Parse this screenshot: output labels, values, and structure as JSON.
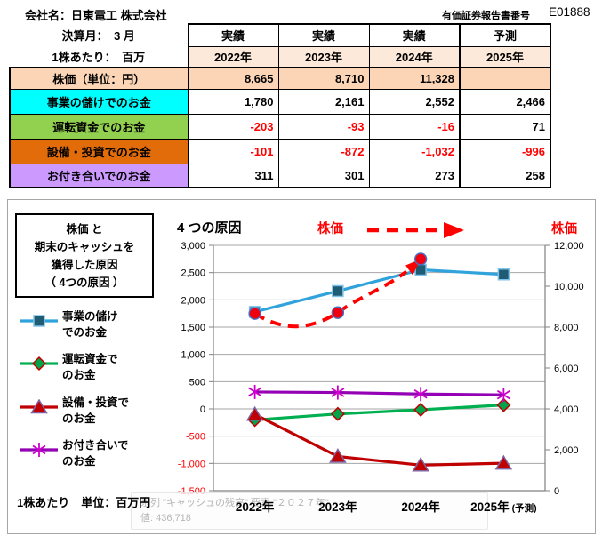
{
  "header": {
    "company_label": "会社名：日東電工 株式会社",
    "report_label": "有価証券報告書番号",
    "report_number": "E01888",
    "fiscal_month_label": "決算月：　3 月",
    "per_share_label": "1株あたり：　百万"
  },
  "table": {
    "col_headers": [
      "実績",
      "実績",
      "実績",
      "予測"
    ],
    "years": [
      "2022年",
      "2023年",
      "2024年",
      "2025年"
    ],
    "rows": [
      {
        "label": "株価（単位：円）",
        "bg": "#FBD5B5",
        "values": [
          "8,665",
          "8,710",
          "11,328",
          ""
        ]
      },
      {
        "label": "事業の儲けでのお金",
        "bg": "#00FFFF",
        "values": [
          "1,780",
          "2,161",
          "2,552",
          "2,466"
        ]
      },
      {
        "label": "運転資金でのお金",
        "bg": "#92D050",
        "values": [
          "-203",
          "-93",
          "-16",
          "71"
        ]
      },
      {
        "label": "設備・投資でのお金",
        "bg": "#E26B0A",
        "values": [
          "-101",
          "-872",
          "-1,032",
          "-996"
        ]
      },
      {
        "label": "お付き合いでのお金",
        "bg": "#CC99FF",
        "values": [
          "311",
          "301",
          "273",
          "258"
        ]
      }
    ]
  },
  "chart_data": {
    "type": "line",
    "title": "4 つの原因",
    "stock_label_left": "株価",
    "stock_label_right": "株価",
    "legend_box_title": "株価 と\n期末のキャッシュを\n獲得した原因\n（ 4つの原因 ）",
    "footer_note": "1株あたり　単位：百万円",
    "categories": [
      {
        "t": "2022年"
      },
      {
        "t": "2023年"
      },
      {
        "t": "2024年"
      },
      {
        "t": "2025年",
        "s": "(予測)"
      }
    ],
    "left_axis": {
      "min": -1500,
      "max": 3000,
      "step": 500,
      "negative_color": "#FF0000"
    },
    "right_axis": {
      "min": 0,
      "max": 12000,
      "step": 2000
    },
    "grid": true,
    "legend_position": "left",
    "series": [
      {
        "name": "事業の儲けでのお金",
        "legend": "事業の儲け\nでのお金",
        "axis": "left",
        "color": "#31A3DC",
        "marker": "square",
        "marker_fill": "#1F5C73",
        "values": [
          1780,
          2161,
          2552,
          2466
        ]
      },
      {
        "name": "運転資金でのお金",
        "legend": "運転資金で\nのお金",
        "axis": "left",
        "color": "#00B050",
        "marker": "diamond",
        "marker_fill": "#00A44A",
        "marker_stroke": "#C00000",
        "values": [
          -203,
          -93,
          -16,
          71
        ]
      },
      {
        "name": "設備・投資でのお金",
        "legend": "設備・投資で\nのお金",
        "axis": "left",
        "color": "#C00000",
        "marker": "triangle",
        "marker_fill": "#C00000",
        "marker_stroke": "#8064A2",
        "values": [
          -101,
          -872,
          -1032,
          -996
        ]
      },
      {
        "name": "お付き合いでのお金",
        "legend": "お付き合いで\nのお金",
        "axis": "left",
        "color": "#9400B4",
        "marker": "star6",
        "marker_fill": "#CC00CC",
        "values": [
          311,
          301,
          273,
          258
        ]
      }
    ],
    "stock_series": {
      "name": "株価",
      "axis": "right",
      "color": "#FF0000",
      "style": "dashed-smooth-arrow",
      "marker": "circle",
      "marker_fill": "#EE0011",
      "marker_stroke": "#4472C4",
      "values": [
        8665,
        8710,
        11328,
        null
      ]
    }
  },
  "tooltip": {
    "line1": "系列 \"キャッシュの残高\" 要素 \"２０２７年\"",
    "line2": "値: 436,718"
  }
}
